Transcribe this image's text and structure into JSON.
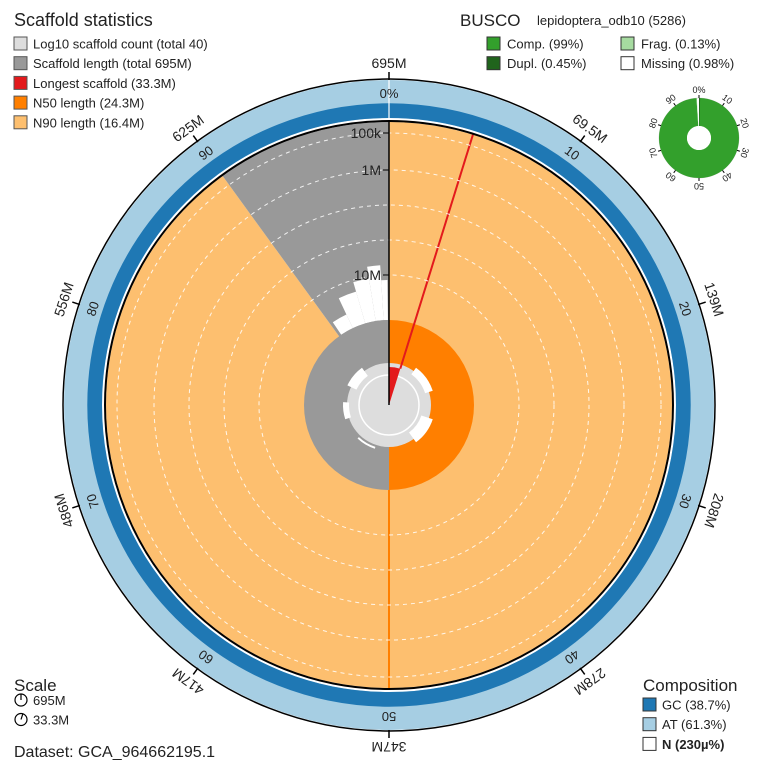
{
  "chart_data": {
    "type": "snail",
    "title": "Scaffold statistics",
    "legend": [
      {
        "label": "Log10 scaffold count (total 40)",
        "color": "#dddddd"
      },
      {
        "label": "Scaffold length (total 695M)",
        "color": "#999999",
        "value": 695
      },
      {
        "label": "Longest scaffold (33.3M)",
        "color": "#e31a1c",
        "value": 33.3
      },
      {
        "label": "N50 length (24.3M)",
        "color": "#ff7f00",
        "value": 24.3,
        "percent": 50
      },
      {
        "label": "N90 length (16.4M)",
        "color": "#fdbf6f",
        "value": 16.4,
        "percent": 90
      }
    ],
    "percent_ticks": [
      "0%",
      "10",
      "20",
      "30",
      "40",
      "50",
      "60",
      "70",
      "80",
      "90"
    ],
    "length_ticks": [
      "695M",
      "69.5M",
      "139M",
      "208M",
      "278M",
      "347M",
      "417M",
      "486M",
      "556M",
      "625M"
    ],
    "radial_ticks": [
      "100k",
      "1M",
      "10M"
    ],
    "busco": {
      "title": "BUSCO",
      "lineage": "lepidoptera_odb10 (5286)",
      "items": [
        {
          "label": "Comp. (99%)",
          "value": 99,
          "color": "#33a02c"
        },
        {
          "label": "Frag. (0.13%)",
          "value": 0.13,
          "color": "#a6dba0"
        },
        {
          "label": "Dupl. (0.45%)",
          "value": 0.45,
          "color": "#20641c"
        },
        {
          "label": "Missing (0.98%)",
          "value": 0.98,
          "color": "#ffffff"
        }
      ],
      "ticks": [
        "0%",
        "10",
        "20",
        "30",
        "40",
        "50",
        "60",
        "70",
        "80",
        "90"
      ]
    },
    "scale": {
      "title": "Scale",
      "items": [
        "695M",
        "33.3M"
      ]
    },
    "dataset": "Dataset: GCA_964662195.1",
    "composition": {
      "title": "Composition",
      "items": [
        {
          "label": "GC (38.7%)",
          "value": 38.7,
          "color": "#1f78b4"
        },
        {
          "label": "AT (61.3%)",
          "value": 61.3,
          "color": "#a6cee3"
        },
        {
          "label": "N (230µ%)",
          "color": "#ffffff"
        }
      ]
    }
  }
}
